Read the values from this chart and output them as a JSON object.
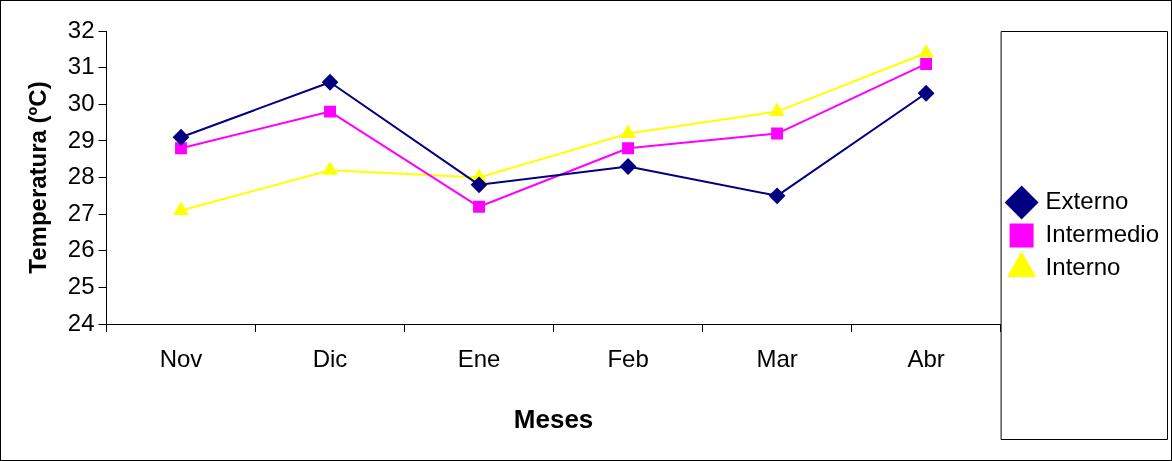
{
  "chart_data": {
    "type": "line",
    "xlabel": "Meses",
    "ylabel": "Temperatura (ºC)",
    "categories": [
      "Nov",
      "Dic",
      "Ene",
      "Feb",
      "Mar",
      "Abr"
    ],
    "series": [
      {
        "name": "Externo",
        "color": "#000080",
        "marker": "diamond",
        "values": [
          29.1,
          30.6,
          27.8,
          28.3,
          27.5,
          30.3
        ]
      },
      {
        "name": "Intermedio",
        "color": "#ff00ff",
        "marker": "square",
        "values": [
          28.8,
          29.8,
          27.2,
          28.8,
          29.2,
          31.1
        ]
      },
      {
        "name": "Interno",
        "color": "#ffff00",
        "marker": "triangle",
        "values": [
          27.1,
          28.2,
          28.0,
          29.2,
          29.8,
          31.4
        ]
      }
    ],
    "ylim": [
      24,
      32
    ],
    "yticks": [
      24,
      25,
      26,
      27,
      28,
      29,
      30,
      31,
      32
    ],
    "grid": false,
    "legend": "right",
    "line_style": "solid"
  }
}
